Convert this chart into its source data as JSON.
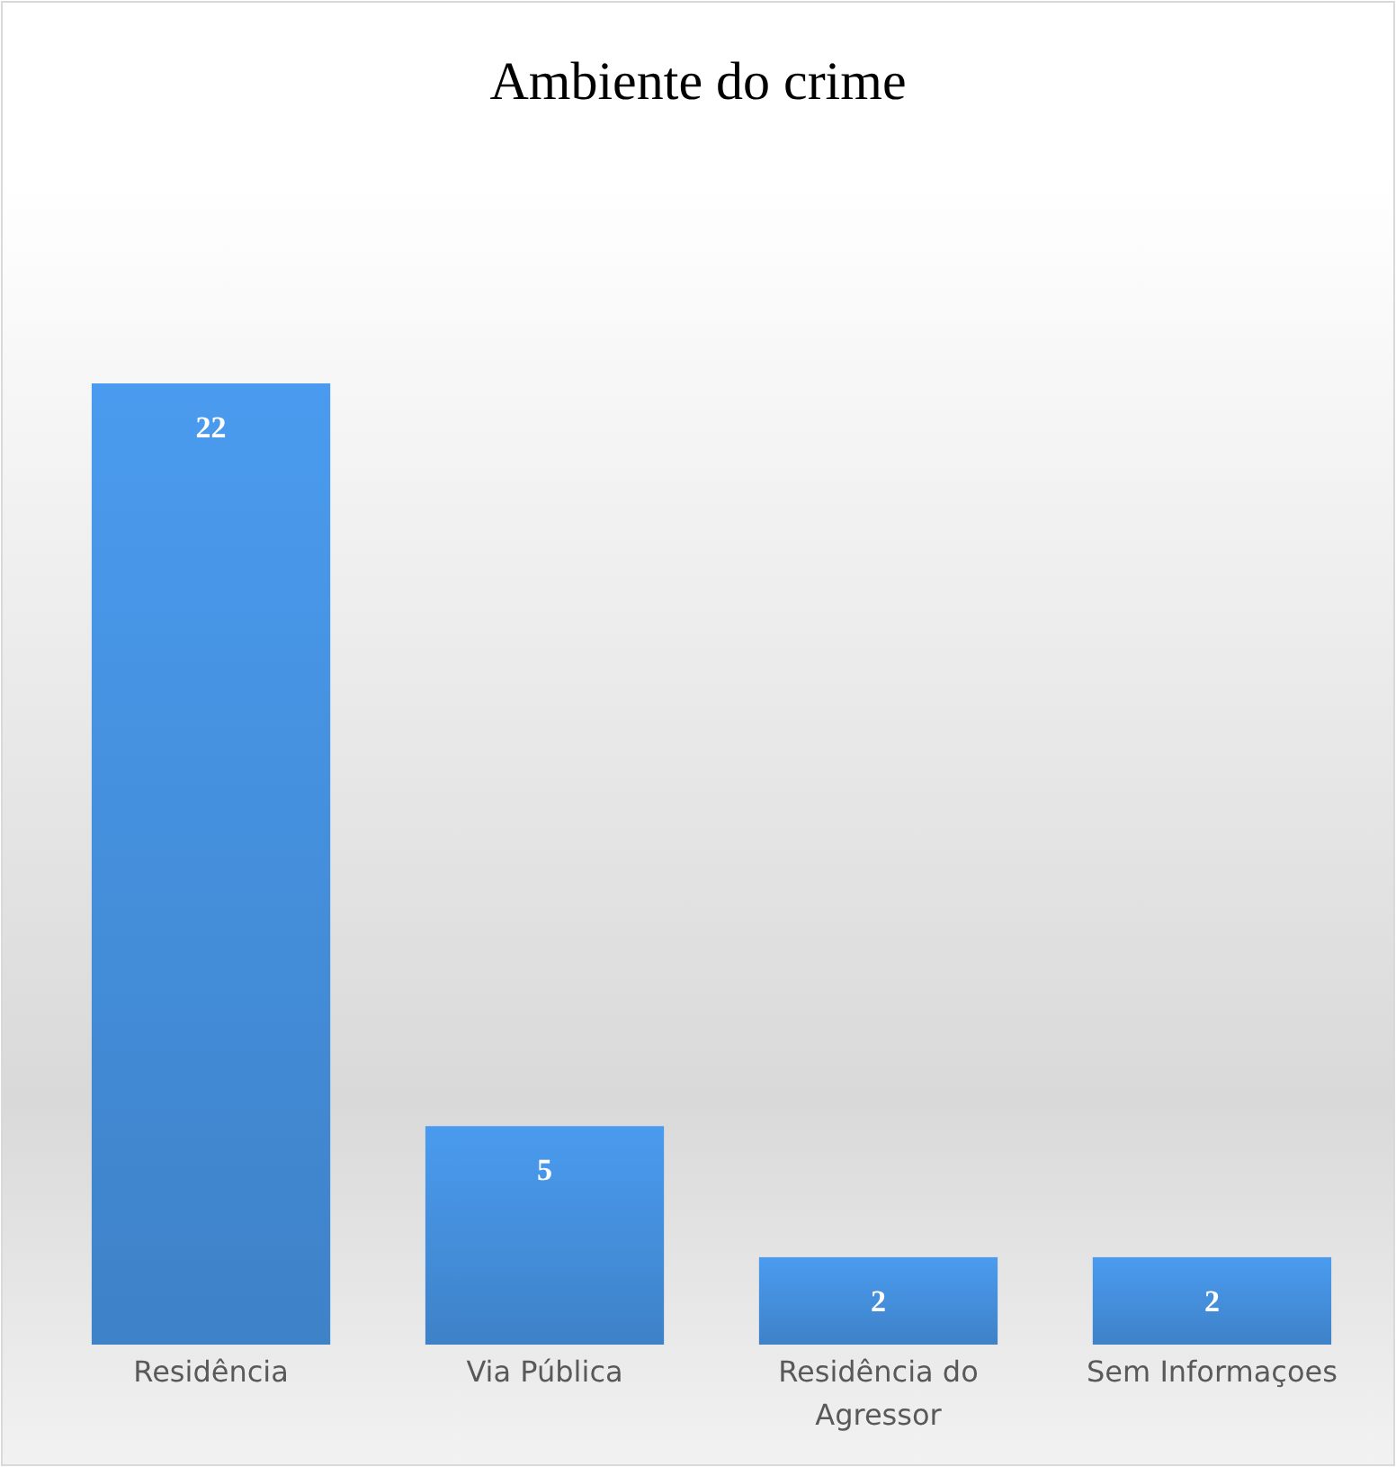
{
  "chart_data": {
    "type": "bar",
    "title": "Ambiente do crime",
    "categories": [
      "Residência",
      "Via Pública",
      "Residência do Agressor",
      "Sem Informaçoes"
    ],
    "values": [
      22,
      5,
      2,
      2
    ],
    "color": "#4189d3",
    "data_labels": true
  }
}
